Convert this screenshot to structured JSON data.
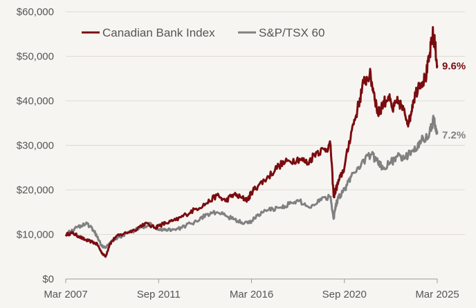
{
  "chart_data": {
    "type": "line",
    "title": "",
    "xlabel": "",
    "ylabel": "",
    "ylim": [
      0,
      60000
    ],
    "y_ticks": [
      {
        "value": 0,
        "label": "$0"
      },
      {
        "value": 10000,
        "label": "$10,000"
      },
      {
        "value": 20000,
        "label": "$20,000"
      },
      {
        "value": 30000,
        "label": "$30,000"
      },
      {
        "value": 40000,
        "label": "$40,000"
      },
      {
        "value": 50000,
        "label": "$50,000"
      },
      {
        "value": 60000,
        "label": "$60,000"
      }
    ],
    "xlim": [
      2007.17,
      2025.17
    ],
    "x_ticks": [
      {
        "value": 2007.17,
        "label": "Mar 2007"
      },
      {
        "value": 2011.67,
        "label": "Sep 2011"
      },
      {
        "value": 2016.17,
        "label": "Mar 2016"
      },
      {
        "value": 2020.67,
        "label": "Sep 2020"
      },
      {
        "value": 2025.17,
        "label": "Mar 2025"
      }
    ],
    "grid": "horizontal",
    "legend_position": "top-left",
    "series": [
      {
        "name": "Canadian Bank Index",
        "color": "#7a0c10",
        "end_label": "9.6%",
        "x": [
          2007.17,
          2007.5,
          2007.8,
          2008.1,
          2008.4,
          2008.7,
          2008.9,
          2009.1,
          2009.3,
          2009.6,
          2010.0,
          2010.5,
          2011.0,
          2011.5,
          2011.67,
          2012.0,
          2012.5,
          2013.0,
          2013.5,
          2014.0,
          2014.5,
          2014.9,
          2015.3,
          2015.7,
          2016.0,
          2016.17,
          2016.5,
          2017.0,
          2017.5,
          2018.0,
          2018.5,
          2018.9,
          2019.3,
          2019.7,
          2020.0,
          2020.15,
          2020.25,
          2020.4,
          2020.67,
          2021.0,
          2021.3,
          2021.6,
          2021.9,
          2022.1,
          2022.3,
          2022.5,
          2022.8,
          2023.0,
          2023.3,
          2023.6,
          2023.8,
          2024.0,
          2024.3,
          2024.6,
          2024.8,
          2024.95,
          2025.05,
          2025.17
        ],
        "values": [
          10000,
          10300,
          9600,
          8800,
          8400,
          7800,
          6000,
          5000,
          7800,
          9500,
          10200,
          11000,
          12500,
          11500,
          12000,
          12500,
          13200,
          14500,
          15800,
          17000,
          18800,
          17500,
          19000,
          18200,
          17800,
          19500,
          21000,
          23000,
          25500,
          26500,
          27000,
          26000,
          28500,
          29000,
          30000,
          18500,
          20000,
          22000,
          25000,
          33000,
          38000,
          44000,
          46000,
          42000,
          37000,
          39000,
          41000,
          38000,
          40000,
          37000,
          35000,
          40000,
          44000,
          45000,
          50000,
          55000,
          53000,
          48000
        ]
      },
      {
        "name": "S&P/TSX 60",
        "color": "#808080",
        "end_label": "7.2%",
        "x": [
          2007.17,
          2007.5,
          2007.9,
          2008.2,
          2008.5,
          2008.7,
          2008.9,
          2009.1,
          2009.4,
          2009.8,
          2010.3,
          2010.8,
          2011.3,
          2011.67,
          2012.0,
          2012.5,
          2013.0,
          2013.5,
          2014.0,
          2014.5,
          2015.0,
          2015.5,
          2016.0,
          2016.17,
          2016.5,
          2017.0,
          2017.5,
          2018.0,
          2018.5,
          2019.0,
          2019.5,
          2020.0,
          2020.15,
          2020.25,
          2020.4,
          2020.67,
          2021.0,
          2021.5,
          2022.0,
          2022.3,
          2022.6,
          2022.9,
          2023.2,
          2023.6,
          2024.0,
          2024.4,
          2024.8,
          2025.0,
          2025.17
        ],
        "values": [
          10000,
          11000,
          12000,
          12500,
          11000,
          9500,
          7500,
          7000,
          8500,
          9500,
          10500,
          11500,
          12500,
          11000,
          11200,
          11000,
          12000,
          13000,
          14500,
          15000,
          14000,
          13000,
          12500,
          13000,
          14500,
          15500,
          16000,
          16800,
          17500,
          16000,
          18000,
          18500,
          13500,
          16500,
          18500,
          20000,
          23000,
          26000,
          28000,
          26000,
          25000,
          26000,
          27500,
          27000,
          29000,
          31000,
          33000,
          36000,
          32500
        ]
      }
    ]
  }
}
